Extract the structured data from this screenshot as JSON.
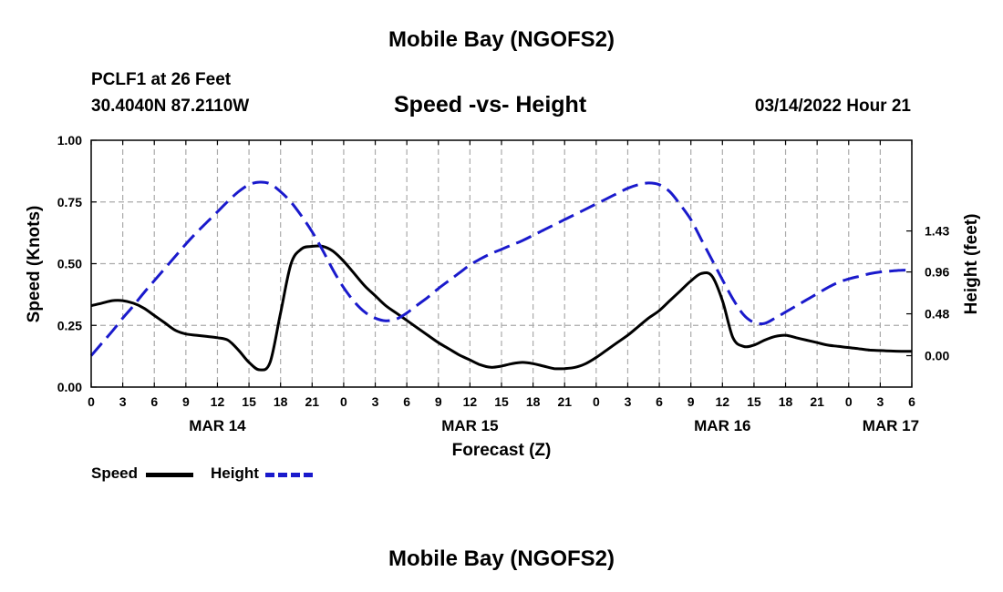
{
  "header": {
    "title": "Mobile Bay (NGOFS2)",
    "station": "PCLF1 at 26 Feet",
    "coords": "30.4040N  87.2110W",
    "subtitle": "Speed -vs- Height",
    "datetime": "03/14/2022 Hour 21"
  },
  "footer": {
    "title": "Mobile Bay (NGOFS2)"
  },
  "legend": {
    "speed_label": "Speed",
    "height_label": "Height"
  },
  "colors": {
    "speed": "#000000",
    "height": "#1a1acc",
    "grid": "#aaaaaa"
  },
  "chart_data": {
    "type": "line",
    "title": "Speed -vs- Height",
    "xlabel": "Forecast (Z)",
    "ylabel_left": "Speed (Knots)",
    "ylabel_right": "Height (feet)",
    "x_unit": "hours from 00Z MAR 14",
    "xlim": [
      0,
      78
    ],
    "ylim_left": [
      0,
      1.0
    ],
    "ylim_right": [
      -0.36,
      2.47
    ],
    "x_ticks": [
      0,
      3,
      6,
      9,
      12,
      15,
      18,
      21,
      24,
      27,
      30,
      33,
      36,
      39,
      42,
      45,
      48,
      51,
      54,
      57,
      60,
      63,
      66,
      69,
      72,
      75,
      78
    ],
    "x_tick_labels": [
      "0",
      "3",
      "6",
      "9",
      "12",
      "15",
      "18",
      "21",
      "0",
      "3",
      "6",
      "9",
      "12",
      "15",
      "18",
      "21",
      "0",
      "3",
      "6",
      "9",
      "12",
      "15",
      "18",
      "21",
      "0",
      "3",
      "6"
    ],
    "day_labels": [
      {
        "x": 12,
        "label": "MAR 14"
      },
      {
        "x": 36,
        "label": "MAR 15"
      },
      {
        "x": 60,
        "label": "MAR 16"
      },
      {
        "x": 76,
        "label": "MAR 17"
      }
    ],
    "left_ticks": [
      0,
      0.25,
      0.5,
      0.75,
      1.0
    ],
    "left_tick_labels": [
      "0.00",
      "0.25",
      "0.50",
      "0.75",
      "1.00"
    ],
    "right_ticks": [
      0.0,
      0.48,
      0.96,
      1.43
    ],
    "right_tick_labels": [
      "0.00",
      "0.48",
      "0.96",
      "1.43"
    ],
    "grid": true,
    "series": [
      {
        "name": "Speed",
        "axis": "left",
        "style": "solid",
        "x": [
          0,
          1,
          2,
          3,
          4,
          5,
          6,
          7,
          8,
          9,
          10,
          11,
          12,
          13,
          14,
          15,
          16,
          17,
          18,
          19,
          20,
          21,
          22,
          23,
          24,
          25,
          26,
          27,
          28,
          29,
          30,
          31,
          32,
          33,
          34,
          35,
          36,
          37,
          38,
          39,
          40,
          41,
          42,
          43,
          44,
          45,
          46,
          47,
          48,
          49,
          50,
          51,
          52,
          53,
          54,
          55,
          56,
          57,
          58,
          59,
          60,
          61,
          62,
          63,
          64,
          65,
          66,
          67,
          68,
          69,
          70,
          71,
          72,
          73,
          74,
          75,
          76,
          77,
          78
        ],
        "values": [
          0.33,
          0.34,
          0.35,
          0.35,
          0.34,
          0.32,
          0.29,
          0.26,
          0.23,
          0.215,
          0.21,
          0.205,
          0.2,
          0.19,
          0.15,
          0.1,
          0.07,
          0.1,
          0.3,
          0.5,
          0.56,
          0.57,
          0.57,
          0.55,
          0.51,
          0.46,
          0.41,
          0.37,
          0.33,
          0.3,
          0.27,
          0.24,
          0.21,
          0.18,
          0.155,
          0.13,
          0.11,
          0.09,
          0.08,
          0.085,
          0.095,
          0.1,
          0.095,
          0.085,
          0.075,
          0.075,
          0.08,
          0.095,
          0.12,
          0.15,
          0.18,
          0.21,
          0.245,
          0.28,
          0.31,
          0.35,
          0.39,
          0.43,
          0.46,
          0.45,
          0.35,
          0.2,
          0.165,
          0.17,
          0.19,
          0.205,
          0.21,
          0.2,
          0.19,
          0.18,
          0.17,
          0.165,
          0.16,
          0.155,
          0.15,
          0.148,
          0.146,
          0.145,
          0.145
        ]
      },
      {
        "name": "Height",
        "axis": "right",
        "style": "dashed",
        "x": [
          0,
          1,
          2,
          3,
          4,
          5,
          6,
          7,
          8,
          9,
          10,
          11,
          12,
          13,
          14,
          15,
          16,
          17,
          18,
          19,
          20,
          21,
          22,
          23,
          24,
          25,
          26,
          27,
          28,
          29,
          30,
          31,
          32,
          33,
          34,
          35,
          36,
          37,
          38,
          39,
          40,
          41,
          42,
          43,
          44,
          45,
          46,
          47,
          48,
          49,
          50,
          51,
          52,
          53,
          54,
          55,
          56,
          57,
          58,
          59,
          60,
          61,
          62,
          63,
          64,
          65,
          66,
          67,
          68,
          69,
          70,
          71,
          72,
          73,
          74,
          75,
          76,
          77,
          78
        ],
        "values": [
          0.0,
          0.14,
          0.28,
          0.43,
          0.57,
          0.72,
          0.86,
          1.0,
          1.14,
          1.28,
          1.41,
          1.53,
          1.65,
          1.77,
          1.88,
          1.96,
          1.99,
          1.97,
          1.88,
          1.76,
          1.6,
          1.42,
          1.21,
          0.98,
          0.78,
          0.62,
          0.5,
          0.43,
          0.4,
          0.42,
          0.49,
          0.58,
          0.67,
          0.77,
          0.86,
          0.95,
          1.04,
          1.11,
          1.17,
          1.22,
          1.27,
          1.32,
          1.38,
          1.44,
          1.5,
          1.56,
          1.62,
          1.68,
          1.74,
          1.8,
          1.86,
          1.92,
          1.96,
          1.98,
          1.96,
          1.88,
          1.73,
          1.56,
          1.33,
          1.1,
          0.87,
          0.65,
          0.47,
          0.38,
          0.37,
          0.43,
          0.5,
          0.57,
          0.64,
          0.71,
          0.78,
          0.84,
          0.88,
          0.91,
          0.94,
          0.96,
          0.97,
          0.98,
          0.98
        ]
      }
    ]
  }
}
